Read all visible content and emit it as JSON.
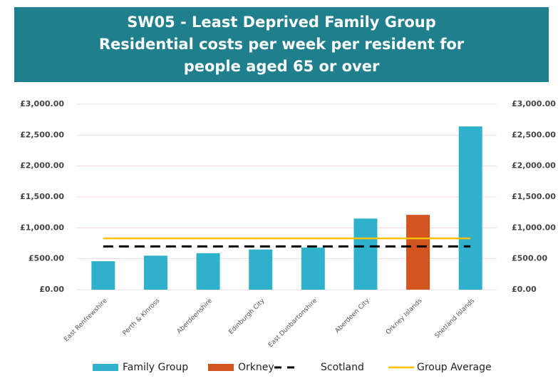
{
  "chart_data": {
    "type": "bar",
    "title": "SW05 - Least Deprived Family Group Residential costs per week per resident for people aged 65 or over",
    "categories": [
      "East Renfrewshire",
      "Perth & Kinross",
      "Aberdeenshire",
      "Edinburgh City",
      "East Dunbartonshire",
      "Aberdeen City",
      "Orkney Islands",
      "Shetland Islands"
    ],
    "series": [
      {
        "name": "Family Group",
        "type": "bar",
        "color": "#2fb1cb",
        "values": [
          460,
          550,
          590,
          650,
          680,
          1150,
          null,
          2640
        ]
      },
      {
        "name": "Orkney",
        "type": "bar",
        "color": "#d2541f",
        "values": [
          null,
          null,
          null,
          null,
          null,
          null,
          1210,
          null
        ]
      },
      {
        "name": "Scotland",
        "type": "line",
        "style": "dashed",
        "color": "#000000",
        "values": [
          700,
          700,
          700,
          700,
          700,
          700,
          700,
          700
        ]
      },
      {
        "name": "Group Average",
        "type": "line",
        "style": "solid",
        "color": "#ffc000",
        "values": [
          830,
          830,
          830,
          830,
          830,
          830,
          830,
          830
        ]
      }
    ],
    "ylim": [
      0,
      3000
    ],
    "yticks": [
      {
        "value": 0,
        "label": "£0.00"
      },
      {
        "value": 500,
        "label": "£500.00"
      },
      {
        "value": 1000,
        "label": "£1,000.00"
      },
      {
        "value": 1500,
        "label": "£1,500.00"
      },
      {
        "value": 2000,
        "label": "£2,000.00"
      },
      {
        "value": 2500,
        "label": "£2,500.00"
      },
      {
        "value": 3000,
        "label": "£3,000.00"
      }
    ],
    "y2lim": [
      0,
      3000
    ],
    "y2ticks": [
      {
        "value": 0,
        "label": "£0.00"
      },
      {
        "value": 500,
        "label": "£500.00"
      },
      {
        "value": 1000,
        "label": "£1,000.00"
      },
      {
        "value": 1500,
        "label": "£1,500.00"
      },
      {
        "value": 2000,
        "label": "£2,000.00"
      },
      {
        "value": 2500,
        "label": "£2,500.00"
      },
      {
        "value": 3000,
        "label": "£3,000.00"
      }
    ],
    "grid": true,
    "legend": "bottom"
  }
}
